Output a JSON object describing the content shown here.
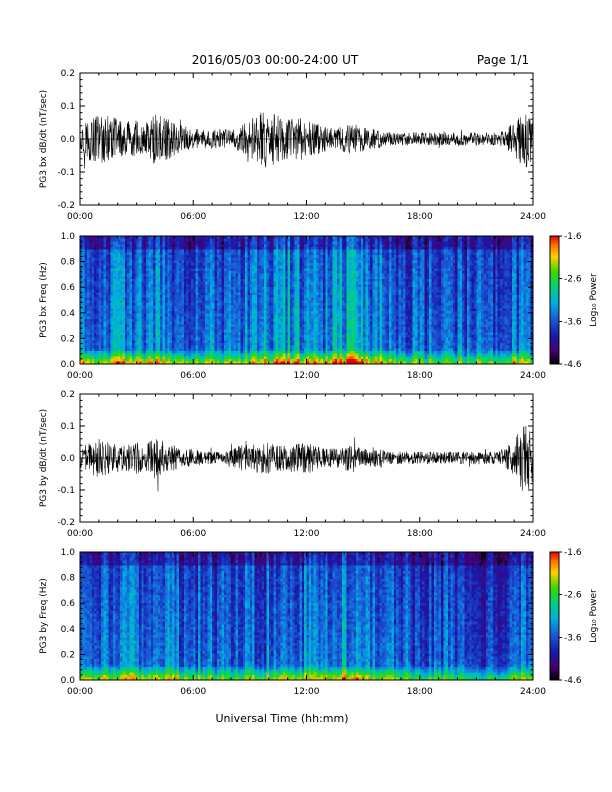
{
  "header": {
    "title": "2016/05/03  00:00-24:00 UT",
    "page": "Page 1/1"
  },
  "x_axis_title": "Universal Time (hh:mm)",
  "colorbar": {
    "label": "Log₁₀ Power",
    "ticks": [
      "-1.6",
      "-2.6",
      "-3.6",
      "-4.6"
    ],
    "tick_values": [
      -1.6,
      -2.6,
      -3.6,
      -4.6
    ],
    "range": [
      -4.6,
      -1.6
    ]
  },
  "chart_data": [
    {
      "type": "line",
      "ylabel": "PG3 bx dB/dt (nT/sec)",
      "xlim_hours": [
        0,
        24
      ],
      "ylim": [
        -0.2,
        0.2
      ],
      "x_ticks": [
        "00:00",
        "06:00",
        "12:00",
        "18:00",
        "24:00"
      ],
      "y_ticks": [
        "0.2",
        "0.1",
        "0.0",
        "-0.1",
        "-0.2"
      ],
      "y_tick_values": [
        0.2,
        0.1,
        0.0,
        -0.1,
        -0.2
      ],
      "envelope": {
        "hours": [
          0.0,
          0.5,
          1.0,
          1.5,
          2.0,
          2.5,
          3.0,
          3.5,
          4.0,
          4.5,
          5.0,
          5.5,
          6.0,
          6.5,
          7.0,
          7.5,
          8.0,
          8.5,
          9.0,
          9.5,
          10.0,
          10.5,
          11.0,
          11.5,
          12.0,
          12.5,
          13.0,
          13.5,
          14.0,
          14.5,
          15.0,
          15.5,
          16.0,
          16.5,
          17.0,
          17.5,
          18.0,
          18.5,
          19.0,
          19.5,
          20.0,
          20.5,
          21.0,
          21.5,
          22.0,
          22.5,
          23.0,
          23.5,
          24.0
        ],
        "amplitude": [
          0.04,
          0.07,
          0.08,
          0.07,
          0.06,
          0.05,
          0.06,
          0.05,
          0.08,
          0.07,
          0.05,
          0.04,
          0.03,
          0.03,
          0.03,
          0.03,
          0.03,
          0.04,
          0.06,
          0.08,
          0.09,
          0.07,
          0.06,
          0.07,
          0.06,
          0.05,
          0.04,
          0.03,
          0.04,
          0.05,
          0.04,
          0.03,
          0.03,
          0.02,
          0.02,
          0.02,
          0.02,
          0.02,
          0.02,
          0.02,
          0.02,
          0.02,
          0.02,
          0.02,
          0.02,
          0.03,
          0.05,
          0.09,
          0.1
        ]
      }
    },
    {
      "type": "heatmap",
      "ylabel": "PG3 bx Freq (Hz)",
      "xlim_hours": [
        0,
        24
      ],
      "ylim": [
        0.0,
        1.0
      ],
      "x_ticks": [
        "00:00",
        "06:00",
        "12:00",
        "18:00",
        "24:00"
      ],
      "y_ticks": [
        "1.0",
        "0.8",
        "0.6",
        "0.4",
        "0.2",
        "0.0"
      ],
      "y_tick_values": [
        1.0,
        0.8,
        0.6,
        0.4,
        0.2,
        0.0
      ],
      "colorscale_range": [
        -4.6,
        -1.6
      ],
      "activity": {
        "hours": [
          0,
          2,
          4,
          6,
          8,
          10,
          11,
          12,
          13,
          14,
          14.5,
          15,
          16,
          18,
          20,
          22,
          23,
          24
        ],
        "level": [
          0.55,
          0.55,
          0.55,
          0.45,
          0.35,
          0.55,
          0.7,
          0.6,
          0.55,
          0.75,
          0.9,
          0.6,
          0.5,
          0.35,
          0.3,
          0.3,
          0.45,
          0.4
        ]
      }
    },
    {
      "type": "line",
      "ylabel": "PG3 by dB/dt (nT/sec)",
      "xlim_hours": [
        0,
        24
      ],
      "ylim": [
        -0.2,
        0.2
      ],
      "x_ticks": [
        "00:00",
        "06:00",
        "12:00",
        "18:00",
        "24:00"
      ],
      "y_ticks": [
        "0.2",
        "0.1",
        "0.0",
        "-0.1",
        "-0.2"
      ],
      "y_tick_values": [
        0.2,
        0.1,
        0.0,
        -0.1,
        -0.2
      ],
      "envelope": {
        "hours": [
          0.0,
          0.5,
          1.0,
          1.5,
          2.0,
          2.5,
          3.0,
          3.5,
          4.0,
          4.5,
          5.0,
          5.5,
          6.0,
          6.5,
          7.0,
          7.5,
          8.0,
          8.5,
          9.0,
          9.5,
          10.0,
          10.5,
          11.0,
          11.5,
          12.0,
          12.5,
          13.0,
          13.5,
          14.0,
          14.5,
          15.0,
          15.5,
          16.0,
          16.5,
          17.0,
          17.5,
          18.0,
          18.5,
          19.0,
          19.5,
          20.0,
          20.5,
          21.0,
          21.5,
          22.0,
          22.5,
          23.0,
          23.5,
          24.0
        ],
        "amplitude": [
          0.03,
          0.05,
          0.06,
          0.05,
          0.04,
          0.04,
          0.05,
          0.04,
          0.07,
          0.05,
          0.04,
          0.03,
          0.03,
          0.02,
          0.02,
          0.02,
          0.03,
          0.04,
          0.04,
          0.05,
          0.05,
          0.04,
          0.04,
          0.05,
          0.05,
          0.04,
          0.03,
          0.03,
          0.04,
          0.04,
          0.03,
          0.03,
          0.03,
          0.02,
          0.02,
          0.02,
          0.02,
          0.02,
          0.02,
          0.02,
          0.02,
          0.02,
          0.02,
          0.02,
          0.02,
          0.03,
          0.06,
          0.11,
          0.09
        ]
      }
    },
    {
      "type": "heatmap",
      "ylabel": "PG3 by Freq (Hz)",
      "xlim_hours": [
        0,
        24
      ],
      "ylim": [
        0.0,
        1.0
      ],
      "x_ticks": [
        "00:00",
        "06:00",
        "12:00",
        "18:00",
        "24:00"
      ],
      "y_ticks": [
        "1.0",
        "0.8",
        "0.6",
        "0.4",
        "0.2",
        "0.0"
      ],
      "y_tick_values": [
        1.0,
        0.8,
        0.6,
        0.4,
        0.2,
        0.0
      ],
      "colorscale_range": [
        -4.6,
        -1.6
      ],
      "activity": {
        "hours": [
          0,
          2,
          4,
          6,
          8,
          10,
          11,
          12,
          13,
          14,
          14.5,
          15,
          16,
          18,
          20,
          22,
          23,
          24
        ],
        "level": [
          0.5,
          0.5,
          0.5,
          0.4,
          0.3,
          0.45,
          0.55,
          0.5,
          0.45,
          0.6,
          0.75,
          0.5,
          0.4,
          0.3,
          0.25,
          0.25,
          0.4,
          0.35
        ]
      }
    }
  ]
}
